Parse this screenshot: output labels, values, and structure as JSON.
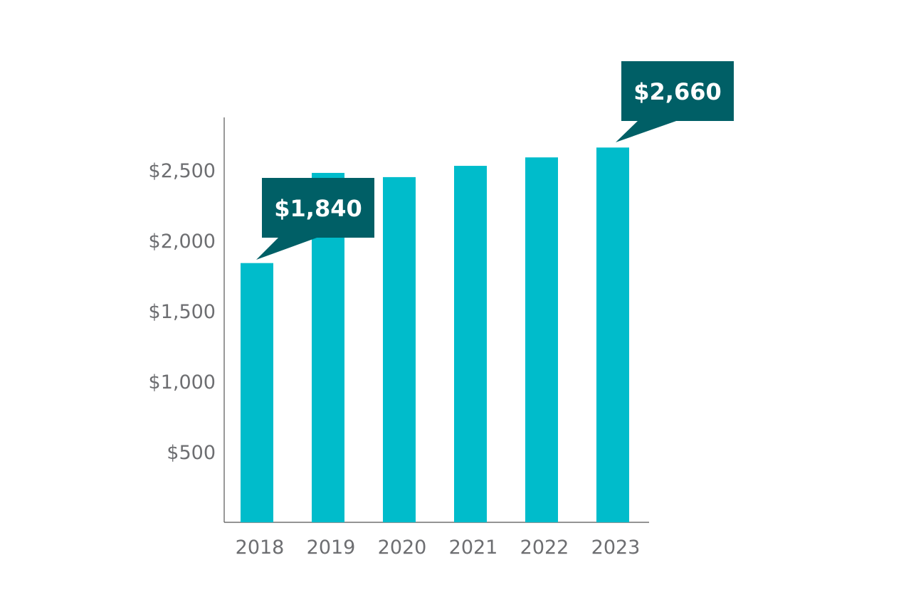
{
  "chart_data": {
    "type": "bar",
    "categories": [
      "2018",
      "2019",
      "2020",
      "2021",
      "2022",
      "2023"
    ],
    "values": [
      1840,
      2480,
      2450,
      2530,
      2590,
      2660
    ],
    "title": "",
    "xlabel": "",
    "ylabel": "",
    "ylim": [
      0,
      2870
    ],
    "yticks": [
      500,
      1000,
      1500,
      2000,
      2500
    ],
    "ytick_labels": [
      "$500",
      "$1,000",
      "$1,500",
      "$2,000",
      "$2,500"
    ],
    "grid": false,
    "annotations": [
      {
        "category": "2018",
        "label": "$1,840"
      },
      {
        "category": "2023",
        "label": "$2,660"
      }
    ],
    "colors": {
      "bar": "#00bccb",
      "callout": "#005f66",
      "tick_text": "#6d6e71",
      "axis": "#555555"
    }
  }
}
